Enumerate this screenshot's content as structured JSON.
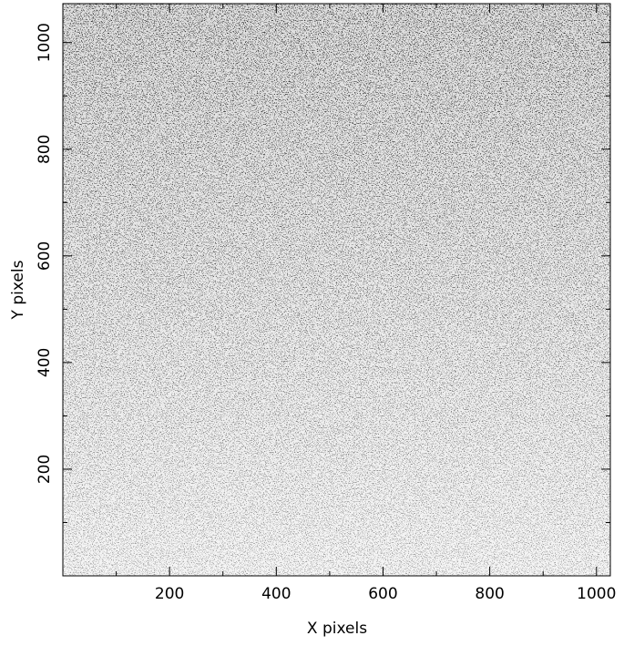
{
  "chart_data": {
    "type": "image",
    "xlabel": "X pixels",
    "ylabel": "Y pixels",
    "xlim": [
      0,
      1026
    ],
    "ylim": [
      0,
      1073
    ],
    "xticks": [
      200,
      400,
      600,
      800,
      1000
    ],
    "yticks": [
      200,
      400,
      600,
      800,
      1000
    ],
    "xticks_minor": [
      100,
      300,
      500,
      700,
      900
    ],
    "yticks_minor": [
      100,
      300,
      500,
      700,
      900
    ]
  }
}
